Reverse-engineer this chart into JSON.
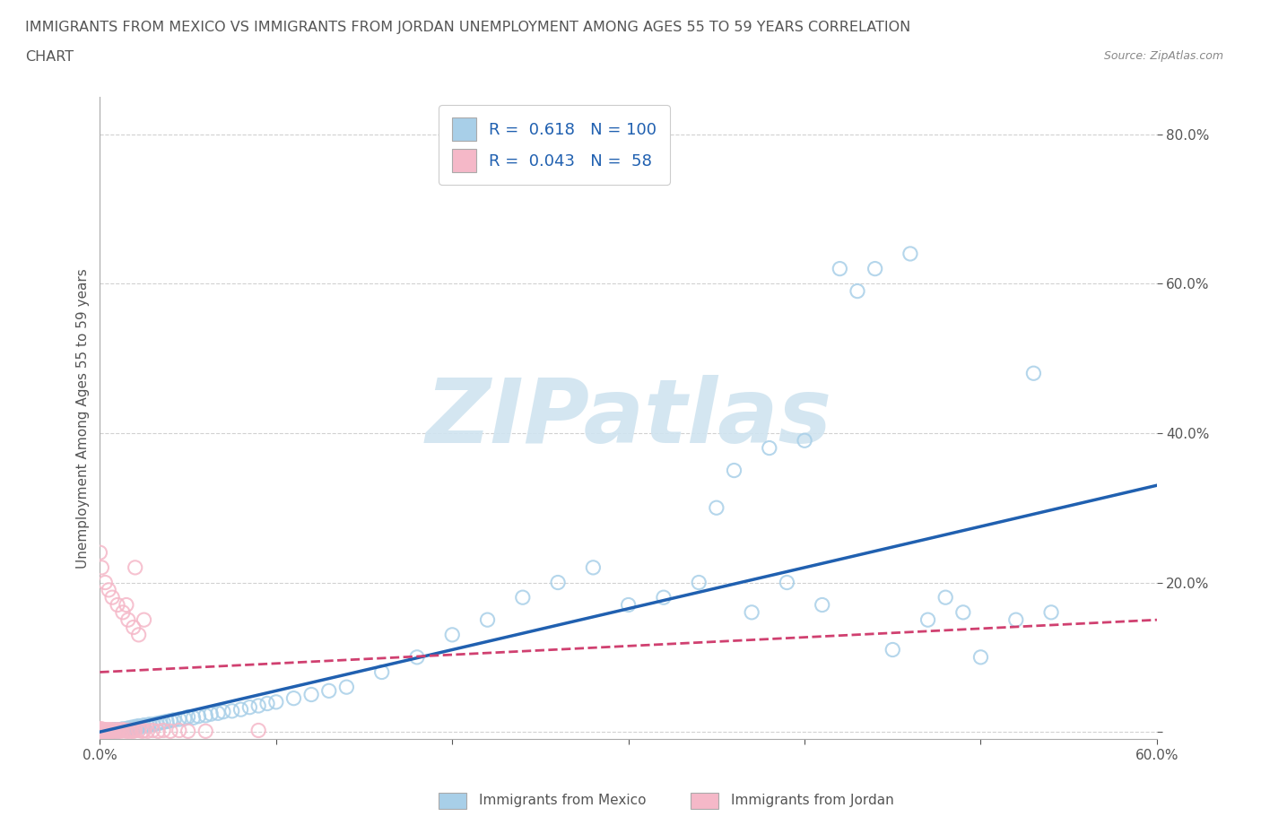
{
  "title_line1": "IMMIGRANTS FROM MEXICO VS IMMIGRANTS FROM JORDAN UNEMPLOYMENT AMONG AGES 55 TO 59 YEARS CORRELATION",
  "title_line2": "CHART",
  "source": "Source: ZipAtlas.com",
  "ylabel": "Unemployment Among Ages 55 to 59 years",
  "xlim": [
    0.0,
    0.6
  ],
  "ylim": [
    -0.01,
    0.85
  ],
  "mexico_color": "#a8cfe8",
  "mexico_edge": "#7ab0d4",
  "jordan_color": "#f5b8c8",
  "jordan_edge": "#e87090",
  "mexico_R": 0.618,
  "mexico_N": 100,
  "jordan_R": 0.043,
  "jordan_N": 58,
  "mexico_line_color": "#2060b0",
  "jordan_line_color": "#d04070",
  "watermark_text": "ZIPatlas",
  "watermark_color": "#d0e4f0",
  "background_color": "#ffffff",
  "grid_color": "#cccccc",
  "text_color": "#555555",
  "legend_text_color": "#2060b0",
  "mexico_scatter_x": [
    0.0,
    0.0,
    0.0,
    0.0,
    0.0,
    0.0,
    0.0,
    0.0,
    0.001,
    0.001,
    0.001,
    0.001,
    0.002,
    0.002,
    0.002,
    0.003,
    0.003,
    0.004,
    0.004,
    0.005,
    0.005,
    0.006,
    0.007,
    0.007,
    0.008,
    0.008,
    0.009,
    0.01,
    0.01,
    0.011,
    0.012,
    0.013,
    0.014,
    0.015,
    0.016,
    0.017,
    0.018,
    0.019,
    0.02,
    0.021,
    0.022,
    0.024,
    0.025,
    0.027,
    0.028,
    0.03,
    0.032,
    0.034,
    0.036,
    0.038,
    0.04,
    0.042,
    0.045,
    0.048,
    0.05,
    0.053,
    0.056,
    0.06,
    0.063,
    0.067,
    0.07,
    0.075,
    0.08,
    0.085,
    0.09,
    0.095,
    0.1,
    0.11,
    0.12,
    0.13,
    0.14,
    0.16,
    0.18,
    0.2,
    0.22,
    0.24,
    0.26,
    0.28,
    0.3,
    0.32,
    0.34,
    0.36,
    0.38,
    0.39,
    0.4,
    0.42,
    0.43,
    0.44,
    0.46,
    0.47,
    0.48,
    0.49,
    0.5,
    0.52,
    0.53,
    0.54,
    0.35,
    0.37,
    0.41,
    0.45
  ],
  "mexico_scatter_y": [
    0.0,
    0.0,
    0.0,
    0.0,
    0.0,
    0.0,
    0.001,
    0.002,
    0.0,
    0.0,
    0.001,
    0.002,
    0.0,
    0.001,
    0.002,
    0.0,
    0.001,
    0.0,
    0.001,
    0.0,
    0.001,
    0.001,
    0.0,
    0.002,
    0.001,
    0.003,
    0.002,
    0.001,
    0.003,
    0.002,
    0.003,
    0.004,
    0.003,
    0.004,
    0.005,
    0.004,
    0.006,
    0.005,
    0.007,
    0.006,
    0.008,
    0.007,
    0.009,
    0.008,
    0.01,
    0.01,
    0.011,
    0.012,
    0.013,
    0.014,
    0.015,
    0.016,
    0.017,
    0.018,
    0.02,
    0.019,
    0.021,
    0.022,
    0.024,
    0.025,
    0.027,
    0.028,
    0.03,
    0.033,
    0.035,
    0.038,
    0.04,
    0.045,
    0.05,
    0.055,
    0.06,
    0.08,
    0.1,
    0.13,
    0.15,
    0.18,
    0.2,
    0.22,
    0.17,
    0.18,
    0.2,
    0.35,
    0.38,
    0.2,
    0.39,
    0.62,
    0.59,
    0.62,
    0.64,
    0.15,
    0.18,
    0.16,
    0.1,
    0.15,
    0.48,
    0.16,
    0.3,
    0.16,
    0.17,
    0.11
  ],
  "jordan_scatter_x": [
    0.0,
    0.0,
    0.0,
    0.0,
    0.0,
    0.0,
    0.0,
    0.0,
    0.0,
    0.0,
    0.0,
    0.001,
    0.001,
    0.001,
    0.001,
    0.001,
    0.002,
    0.002,
    0.002,
    0.003,
    0.003,
    0.003,
    0.004,
    0.004,
    0.005,
    0.005,
    0.005,
    0.006,
    0.006,
    0.007,
    0.007,
    0.008,
    0.008,
    0.009,
    0.01,
    0.01,
    0.011,
    0.012,
    0.013,
    0.014,
    0.015,
    0.016,
    0.017,
    0.018,
    0.019,
    0.02,
    0.022,
    0.024,
    0.025,
    0.027,
    0.03,
    0.033,
    0.036,
    0.04,
    0.045,
    0.05,
    0.06,
    0.09
  ],
  "jordan_scatter_y": [
    0.0,
    0.0,
    0.0,
    0.0,
    0.0,
    0.0,
    0.001,
    0.001,
    0.002,
    0.003,
    0.004,
    0.0,
    0.001,
    0.002,
    0.003,
    0.004,
    0.0,
    0.001,
    0.003,
    0.0,
    0.001,
    0.003,
    0.001,
    0.002,
    0.001,
    0.002,
    0.003,
    0.001,
    0.002,
    0.001,
    0.003,
    0.001,
    0.002,
    0.002,
    0.001,
    0.003,
    0.002,
    0.001,
    0.003,
    0.002,
    0.001,
    0.002,
    0.001,
    0.002,
    0.001,
    0.002,
    0.002,
    0.001,
    0.002,
    0.001,
    0.002,
    0.001,
    0.002,
    0.001,
    0.002,
    0.001,
    0.001,
    0.002
  ],
  "jordan_high_x": [
    0.0,
    0.001,
    0.003,
    0.005,
    0.007,
    0.01,
    0.013,
    0.016,
    0.019,
    0.022,
    0.025,
    0.02,
    0.015
  ],
  "jordan_high_y": [
    0.24,
    0.22,
    0.2,
    0.19,
    0.18,
    0.17,
    0.16,
    0.15,
    0.14,
    0.13,
    0.15,
    0.22,
    0.17
  ]
}
